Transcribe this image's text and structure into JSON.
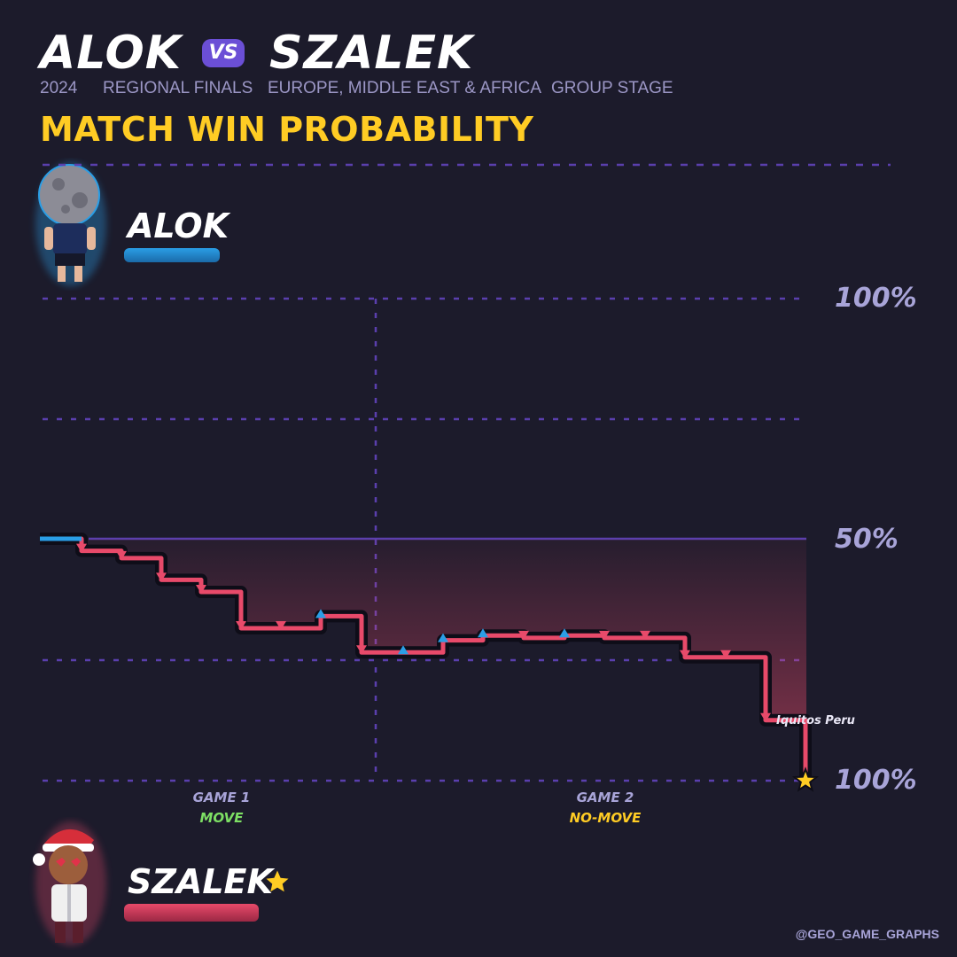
{
  "header": {
    "player1": "ALOK",
    "vs": "VS",
    "player2": "SZALEK",
    "year": "2024",
    "event": "REGIONAL FINALS",
    "region": "EUROPE, MIDDLE EAST & AFRICA",
    "stage": "GROUP STAGE",
    "subtitle": "MATCH WIN PROBABILITY"
  },
  "players": {
    "top": {
      "name": "ALOK",
      "color": "#2a9ee6"
    },
    "bottom": {
      "name": "SZALEK",
      "color": "#e84a6a",
      "winner_icon": "star-icon"
    }
  },
  "axis_labels": {
    "top": "100%",
    "middle": "50%",
    "bottom": "100%"
  },
  "games": [
    {
      "label": "GAME 1",
      "mode": "MOVE",
      "mode_color": "#7ddf64"
    },
    {
      "label": "GAME 2",
      "mode": "NO-MOVE",
      "mode_color": "#ffcc24"
    }
  ],
  "credit": "@GEO_GAME_GRAPHS",
  "chart_data": {
    "type": "line",
    "title": "MATCH WIN PROBABILITY",
    "xlabel": "",
    "ylabel": "",
    "ylim": [
      -1,
      1
    ],
    "step": true,
    "grid": true,
    "games": [
      "GAME 1",
      "GAME 2"
    ],
    "x": [
      0,
      1,
      2,
      3,
      4,
      5,
      6,
      7,
      8,
      9,
      10,
      11,
      12,
      13,
      14,
      15,
      16,
      17,
      18,
      19
    ],
    "series": [
      {
        "values": [
          0.0,
          -0.05,
          -0.08,
          -0.17,
          -0.22,
          -0.37,
          -0.37,
          -0.32,
          -0.47,
          -0.47,
          -0.42,
          -0.4,
          -0.41,
          -0.4,
          -0.41,
          -0.41,
          -0.49,
          -0.49,
          -0.75,
          -1.0
        ],
        "markers": [
          "none",
          "down",
          "down",
          "down",
          "down",
          "down",
          "down",
          "up",
          "down",
          "up",
          "up",
          "up",
          "down",
          "up",
          "down",
          "down",
          "down",
          "down",
          "down",
          "star"
        ]
      }
    ],
    "annotations": [
      {
        "text": "Iquitos Peru",
        "point_index": 18
      }
    ]
  }
}
